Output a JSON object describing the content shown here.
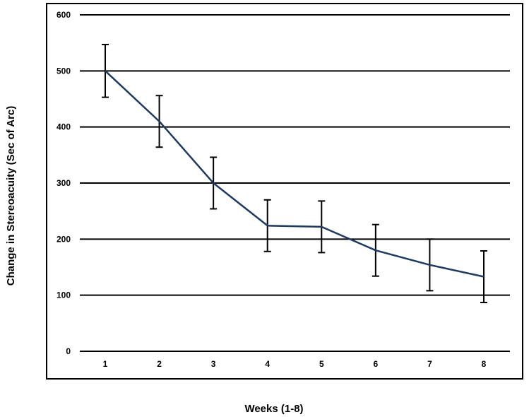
{
  "chart_data": {
    "type": "line",
    "title": "",
    "xlabel": "Weeks (1-8)",
    "ylabel": "Change in Stereoacuity (Sec of Arc)",
    "categories": [
      "1",
      "2",
      "3",
      "4",
      "5",
      "6",
      "7",
      "8"
    ],
    "series": [
      {
        "values": [
          500,
          410,
          300,
          224,
          222,
          180,
          154,
          133
        ],
        "error": [
          47,
          46,
          46,
          46,
          46,
          46,
          46,
          46
        ],
        "color": "#1f3a5f"
      }
    ],
    "ylim": [
      0,
      600
    ],
    "yticks": [
      0,
      100,
      200,
      300,
      400,
      500,
      600
    ],
    "grid": "horizontal",
    "legend": "none"
  }
}
